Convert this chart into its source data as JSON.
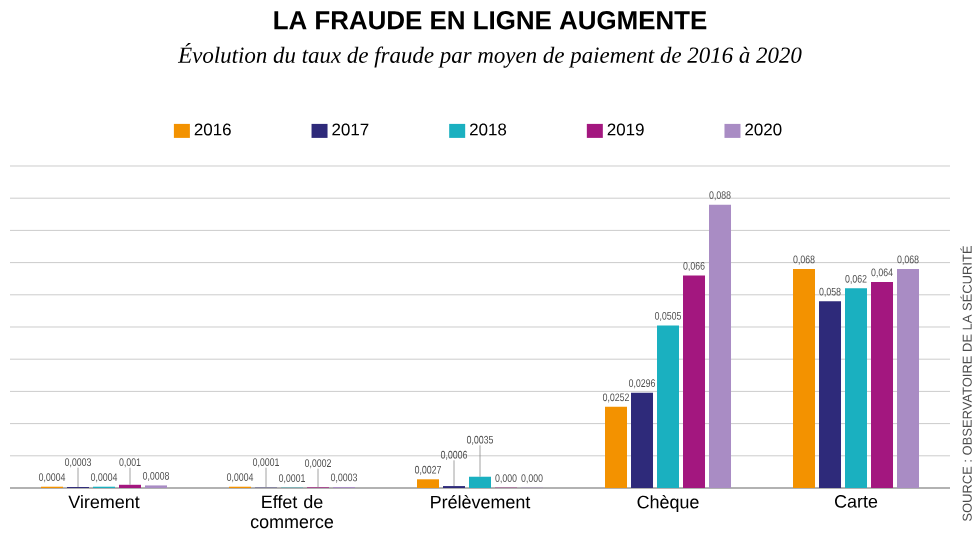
{
  "chart_data": {
    "type": "bar",
    "title": "LA FRAUDE EN LIGNE AUGMENTE",
    "subtitle": "Évolution du taux de fraude par moyen de paiement de 2016 à 2020",
    "categories": [
      "Virement",
      "Effet de commerce",
      "Prélèvement",
      "Chèque",
      "Carte"
    ],
    "series": [
      {
        "name": "2016",
        "color": "#f39200",
        "values": [
          0.0004,
          0.0004,
          0.0027,
          0.0252,
          0.068
        ],
        "value_labels": [
          "0,0004",
          "0,0004",
          "0,0027",
          "0,0252",
          "0,068"
        ]
      },
      {
        "name": "2017",
        "color": "#2e2a7a",
        "values": [
          0.0003,
          0.0001,
          0.0006,
          0.0296,
          0.058
        ],
        "value_labels": [
          "0,0003",
          "0,0001",
          "0,0006",
          "0,0296",
          "0,058"
        ]
      },
      {
        "name": "2018",
        "color": "#1ab0c0",
        "values": [
          0.0004,
          0.0001,
          0.0035,
          0.0505,
          0.062
        ],
        "value_labels": [
          "0,0004",
          "0,0001",
          "0,0035",
          "0,0505",
          "0,062"
        ]
      },
      {
        "name": "2019",
        "color": "#a3177f",
        "values": [
          0.001,
          0.0002,
          0.0001,
          0.066,
          0.064
        ],
        "value_labels": [
          "0,001",
          "0,0002",
          "0,000",
          "0,066",
          "0,064"
        ]
      },
      {
        "name": "2020",
        "color": "#a98cc4",
        "values": [
          0.0008,
          0.0003,
          0.0001,
          0.088,
          0.068
        ],
        "value_labels": [
          "0,0008",
          "0,0003",
          "0,000",
          "0,088",
          "0,068"
        ]
      }
    ],
    "ylim": [
      0,
      0.1
    ],
    "yticks": [
      {
        "value": 0,
        "label": null
      },
      {
        "value": 0.01,
        "label": null
      },
      {
        "value": 0.02,
        "label": null
      },
      {
        "value": 0.03,
        "label": null
      },
      {
        "value": 0.04,
        "label": null
      },
      {
        "value": 0.05,
        "label": null
      },
      {
        "value": 0.06,
        "label": null
      },
      {
        "value": 0.07,
        "label": null
      },
      {
        "value": 0.08,
        "label": null
      },
      {
        "value": 0.09,
        "label": null
      },
      {
        "value": 0.1,
        "label": null
      }
    ],
    "grid": "y",
    "legend": "top",
    "tick_labels": "x",
    "annotations": [
      "SOURCE : OBSERVATOIRE DE LA SÉCURITÉ"
    ]
  }
}
